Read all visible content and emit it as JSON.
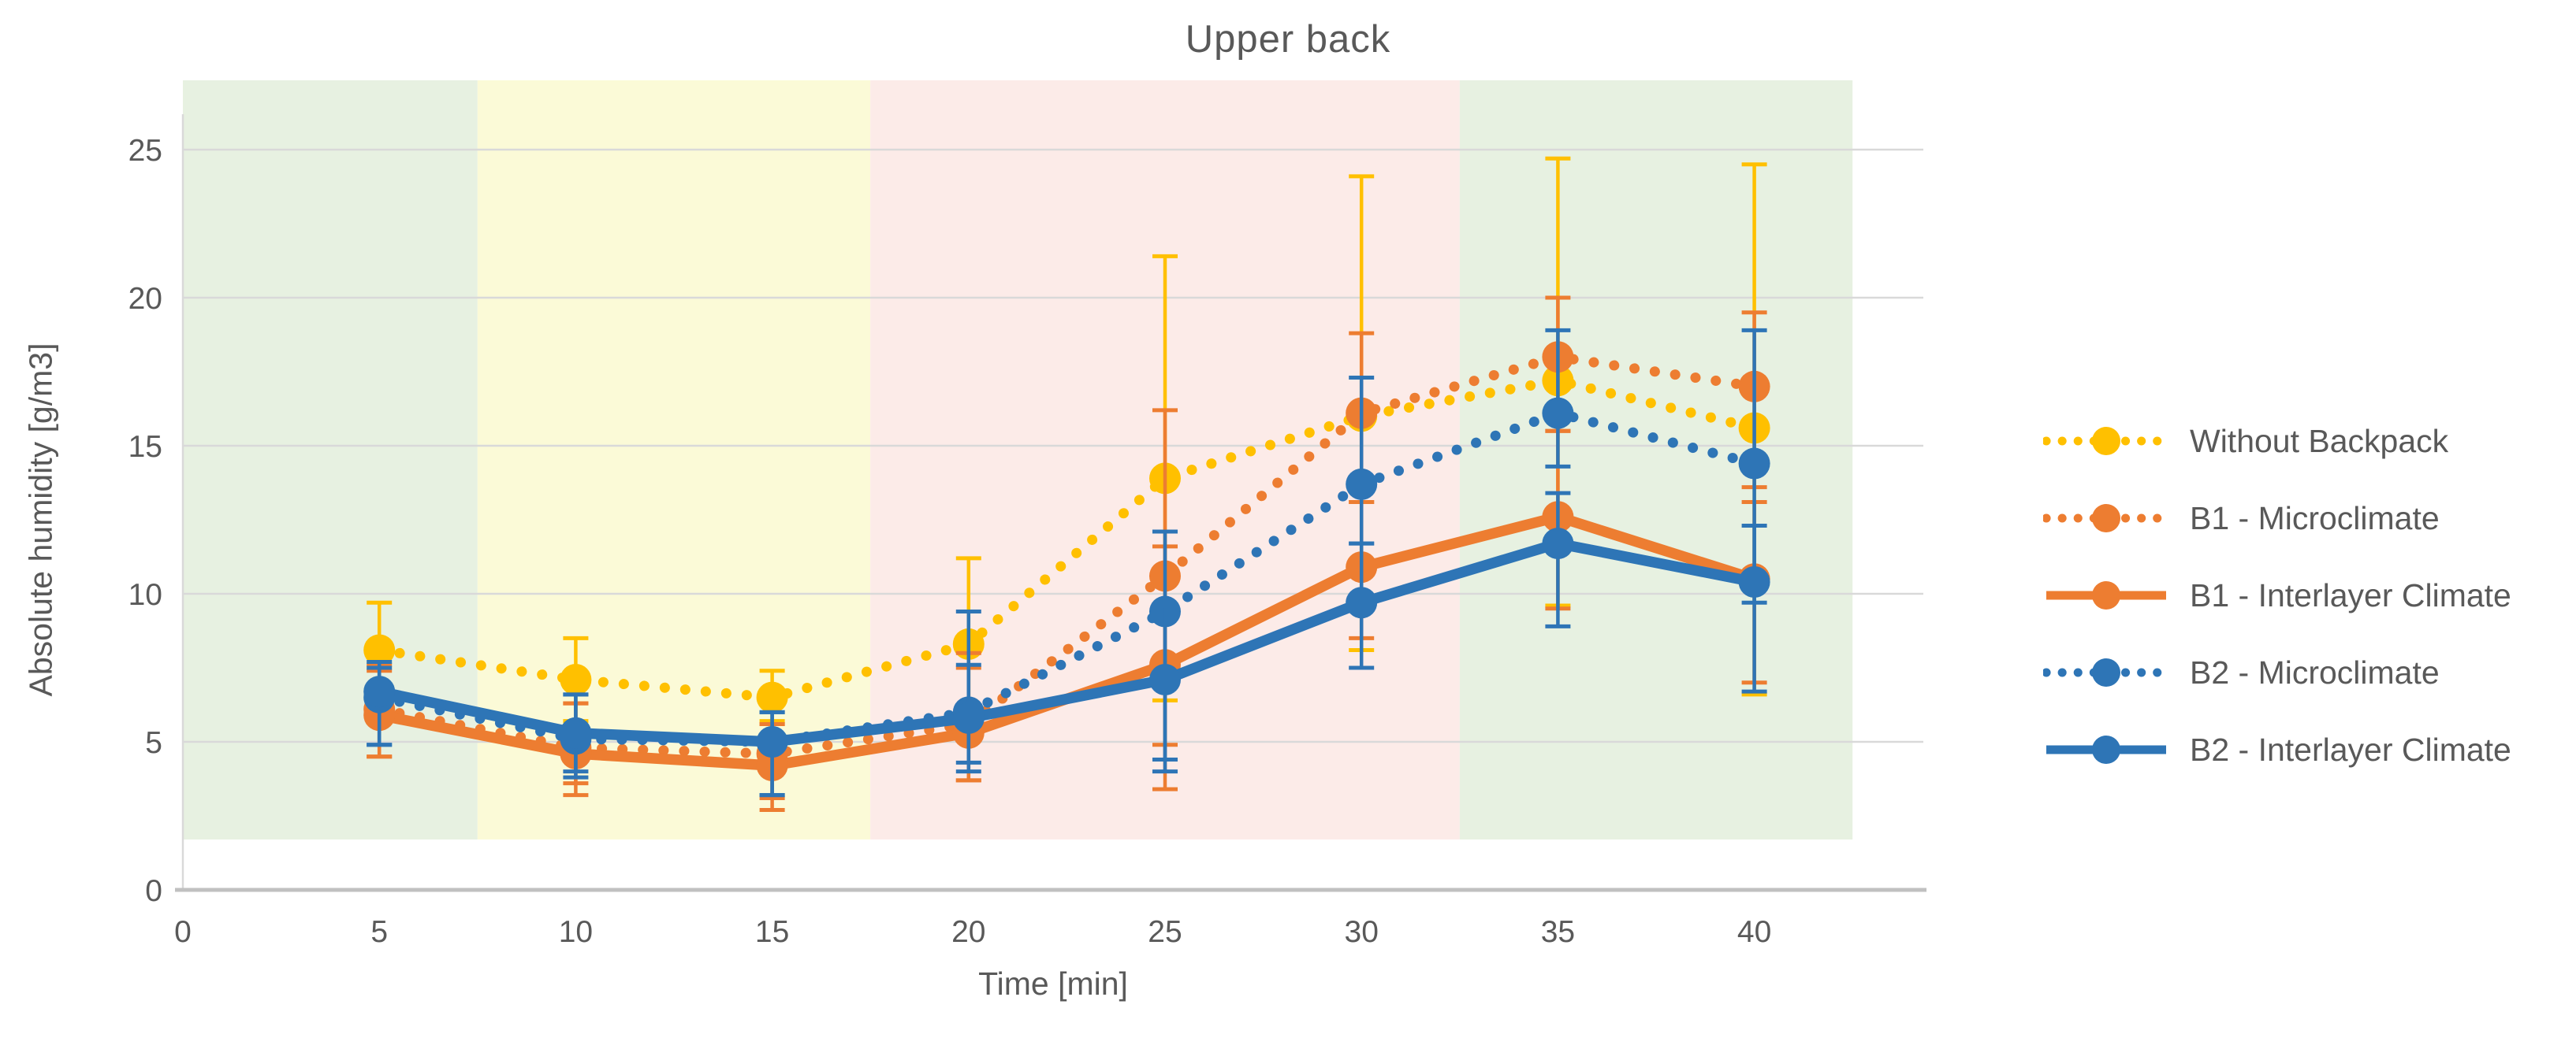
{
  "chart_data": {
    "type": "line",
    "title": "Upper back",
    "xlabel": "Time [min]",
    "ylabel": "Absolute humidity [g/m3]",
    "x": [
      5,
      10,
      15,
      20,
      25,
      30,
      35,
      40
    ],
    "x_ticks": [
      0,
      5,
      10,
      15,
      20,
      25,
      30,
      35,
      40
    ],
    "y_ticks": [
      0,
      5,
      10,
      15,
      20,
      25
    ],
    "xlim": [
      0,
      42.5
    ],
    "ylim": [
      0,
      26.2
    ],
    "grid": true,
    "legend_position": "right",
    "series": [
      {
        "name": "Without Backpack",
        "color": "#FFC000",
        "line_style": "dotted",
        "marker": "circle",
        "values": [
          8.1,
          7.1,
          6.5,
          8.3,
          13.9,
          16.0,
          17.2,
          15.6
        ],
        "err_up": [
          1.6,
          1.4,
          0.9,
          2.9,
          7.5,
          8.1,
          7.5,
          8.9
        ],
        "err_down": [
          1.5,
          1.4,
          0.8,
          2.9,
          7.5,
          7.9,
          7.6,
          9.0
        ]
      },
      {
        "name": "B1 - Microclimate",
        "color": "#ED7D31",
        "line_style": "dotted",
        "marker": "circle",
        "values": [
          6.1,
          4.8,
          4.6,
          5.6,
          10.6,
          16.1,
          18.0,
          17.0
        ],
        "err_up": [
          1.5,
          1.5,
          1.0,
          2.4,
          5.6,
          2.7,
          2.0,
          2.5
        ],
        "err_down": [
          1.6,
          1.2,
          1.5,
          1.9,
          5.7,
          3.0,
          2.5,
          3.4
        ]
      },
      {
        "name": "B1 - Interlayer Climate",
        "color": "#ED7D31",
        "line_style": "solid",
        "marker": "circle",
        "values": [
          5.9,
          4.6,
          4.2,
          5.3,
          7.6,
          10.9,
          12.6,
          10.5
        ],
        "err_up": [
          1.5,
          1.7,
          1.4,
          2.2,
          4.0,
          2.2,
          2.9,
          2.6
        ],
        "err_down": [
          1.4,
          1.4,
          1.5,
          1.6,
          4.2,
          2.4,
          3.1,
          3.5
        ]
      },
      {
        "name": "B2 - Microclimate",
        "color": "#2E75B6",
        "line_style": "dotted",
        "marker": "circle",
        "values": [
          6.5,
          5.1,
          5.0,
          6.0,
          9.4,
          13.7,
          16.1,
          14.4
        ],
        "err_up": [
          1.0,
          1.5,
          1.0,
          3.4,
          2.7,
          3.6,
          2.8,
          4.5
        ],
        "err_down": [
          1.6,
          1.3,
          1.8,
          1.7,
          5.0,
          2.0,
          1.8,
          4.7
        ]
      },
      {
        "name": "B2 - Interlayer Climate",
        "color": "#2E75B6",
        "line_style": "solid",
        "marker": "circle",
        "values": [
          6.7,
          5.3,
          5.0,
          5.8,
          7.1,
          9.7,
          11.7,
          10.4
        ],
        "err_up": [
          1.0,
          1.3,
          1.0,
          1.8,
          2.5,
          2.0,
          1.7,
          1.9
        ],
        "err_down": [
          1.8,
          1.3,
          1.8,
          1.8,
          3.1,
          2.2,
          2.8,
          3.7
        ]
      }
    ],
    "phase_bands": [
      {
        "from": 0,
        "to": 7.5,
        "color": "#E7F1E1"
      },
      {
        "from": 7.5,
        "to": 17.5,
        "color": "#FBFAD7"
      },
      {
        "from": 17.5,
        "to": 32.5,
        "color": "#FCEBE8"
      },
      {
        "from": 32.5,
        "to": 42.5,
        "color": "#E7F1E1"
      }
    ]
  },
  "colors": {
    "text": "#595959",
    "gridline": "#D9D9D9",
    "axis_line": "#C0C0C0",
    "background": "#FFFFFF"
  }
}
